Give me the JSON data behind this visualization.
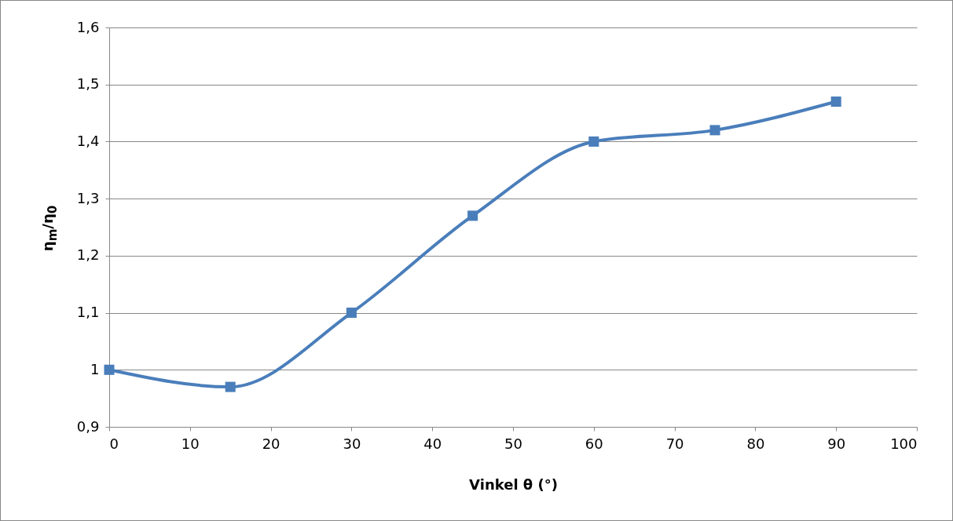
{
  "chart_data": {
    "type": "line",
    "xlabel": "Vinkel θ (°)",
    "ylabel": "η$_{m}$/η$_{0}$",
    "x": [
      0,
      15,
      30,
      45,
      60,
      75,
      90
    ],
    "series": [
      {
        "color": "#4a7ebb",
        "values": [
          1.0,
          0.97,
          1.1,
          1.27,
          1.4,
          1.42,
          1.47
        ]
      }
    ],
    "xlim": [
      0,
      100
    ],
    "xticks": [
      0,
      10,
      20,
      30,
      40,
      50,
      60,
      70,
      80,
      90,
      100
    ],
    "ylim": [
      0.9,
      1.6
    ],
    "yticks": [
      {
        "value": 0.9,
        "label": "0,9"
      },
      1,
      {
        "value": 1.1,
        "label": "1,1"
      },
      {
        "value": 1.2,
        "label": "1,2"
      },
      {
        "value": 1.3,
        "label": "1,3"
      },
      {
        "value": 1.4,
        "label": "1,4"
      },
      {
        "value": 1.5,
        "label": "1,5"
      },
      {
        "value": 1.6,
        "label": "1,6"
      }
    ],
    "grid": "y",
    "marker": "square"
  }
}
